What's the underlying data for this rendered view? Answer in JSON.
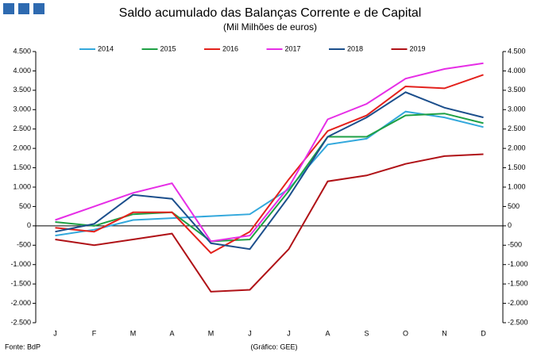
{
  "chart_data": {
    "type": "line",
    "title": "Saldo acumulado das Balanças Corrente e de Capital",
    "subtitle": "(Mil Milhões de euros)",
    "source": "Fonte: BdP",
    "credit": "(Gráfico: GEE)",
    "categories": [
      "J",
      "F",
      "M",
      "A",
      "M",
      "J",
      "J",
      "A",
      "S",
      "O",
      "N",
      "D"
    ],
    "series": [
      {
        "name": "2014",
        "color": "#33a8dc",
        "values": [
          -250,
          -100,
          150,
          200,
          250,
          300,
          950,
          2100,
          2250,
          2950,
          2800,
          2550
        ]
      },
      {
        "name": "2015",
        "color": "#1fa045",
        "values": [
          100,
          0,
          300,
          350,
          -400,
          -350,
          900,
          2300,
          2300,
          2850,
          2900,
          2650
        ]
      },
      {
        "name": "2016",
        "color": "#e3211c",
        "values": [
          -50,
          -150,
          350,
          350,
          -700,
          -150,
          1200,
          2450,
          2850,
          3600,
          3550,
          3900
        ]
      },
      {
        "name": "2017",
        "color": "#e62ee6",
        "values": [
          150,
          500,
          850,
          1100,
          -400,
          -250,
          1000,
          2750,
          3150,
          3800,
          4050,
          4200
        ]
      },
      {
        "name": "2018",
        "color": "#1c4f8c",
        "values": [
          -150,
          50,
          800,
          700,
          -450,
          -600,
          750,
          2300,
          2800,
          3450,
          3050,
          2800
        ]
      },
      {
        "name": "2019",
        "color": "#b01217",
        "values": [
          -350,
          -500,
          -350,
          -200,
          -1700,
          -1650,
          -600,
          1150,
          1300,
          1600,
          1800,
          1850
        ]
      }
    ],
    "ylim": [
      -2500,
      4500
    ],
    "yticks": [
      {
        "value": -2500,
        "label": "-2.500"
      },
      {
        "value": -2000,
        "label": "-2.000"
      },
      {
        "value": -1500,
        "label": "-1.500"
      },
      {
        "value": -1000,
        "label": "-1.000"
      },
      -500,
      0,
      500,
      {
        "value": 1000,
        "label": "1.000"
      },
      {
        "value": 1500,
        "label": "1.500"
      },
      {
        "value": 2000,
        "label": "2.000"
      },
      {
        "value": 2500,
        "label": "2.500"
      },
      {
        "value": 3000,
        "label": "3.000"
      },
      {
        "value": 3500,
        "label": "3.500"
      },
      {
        "value": 4000,
        "label": "4.000"
      },
      {
        "value": 4500,
        "label": "4.500"
      }
    ],
    "y2lim": [
      -2500,
      4500
    ],
    "y2ticks": [
      {
        "value": -2500,
        "label": "-2.500"
      },
      {
        "value": -2000,
        "label": "-2.000"
      },
      {
        "value": -1500,
        "label": "-1.500"
      },
      {
        "value": -1000,
        "label": "-1.000"
      },
      -500,
      0,
      500,
      {
        "value": 1000,
        "label": "1.000"
      },
      {
        "value": 1500,
        "label": "1.500"
      },
      {
        "value": 2000,
        "label": "2.000"
      },
      {
        "value": 2500,
        "label": "2.500"
      },
      {
        "value": 3000,
        "label": "3.000"
      },
      {
        "value": 3500,
        "label": "3.500"
      },
      {
        "value": 4000,
        "label": "4.000"
      },
      {
        "value": 4500,
        "label": "4.500"
      }
    ]
  }
}
